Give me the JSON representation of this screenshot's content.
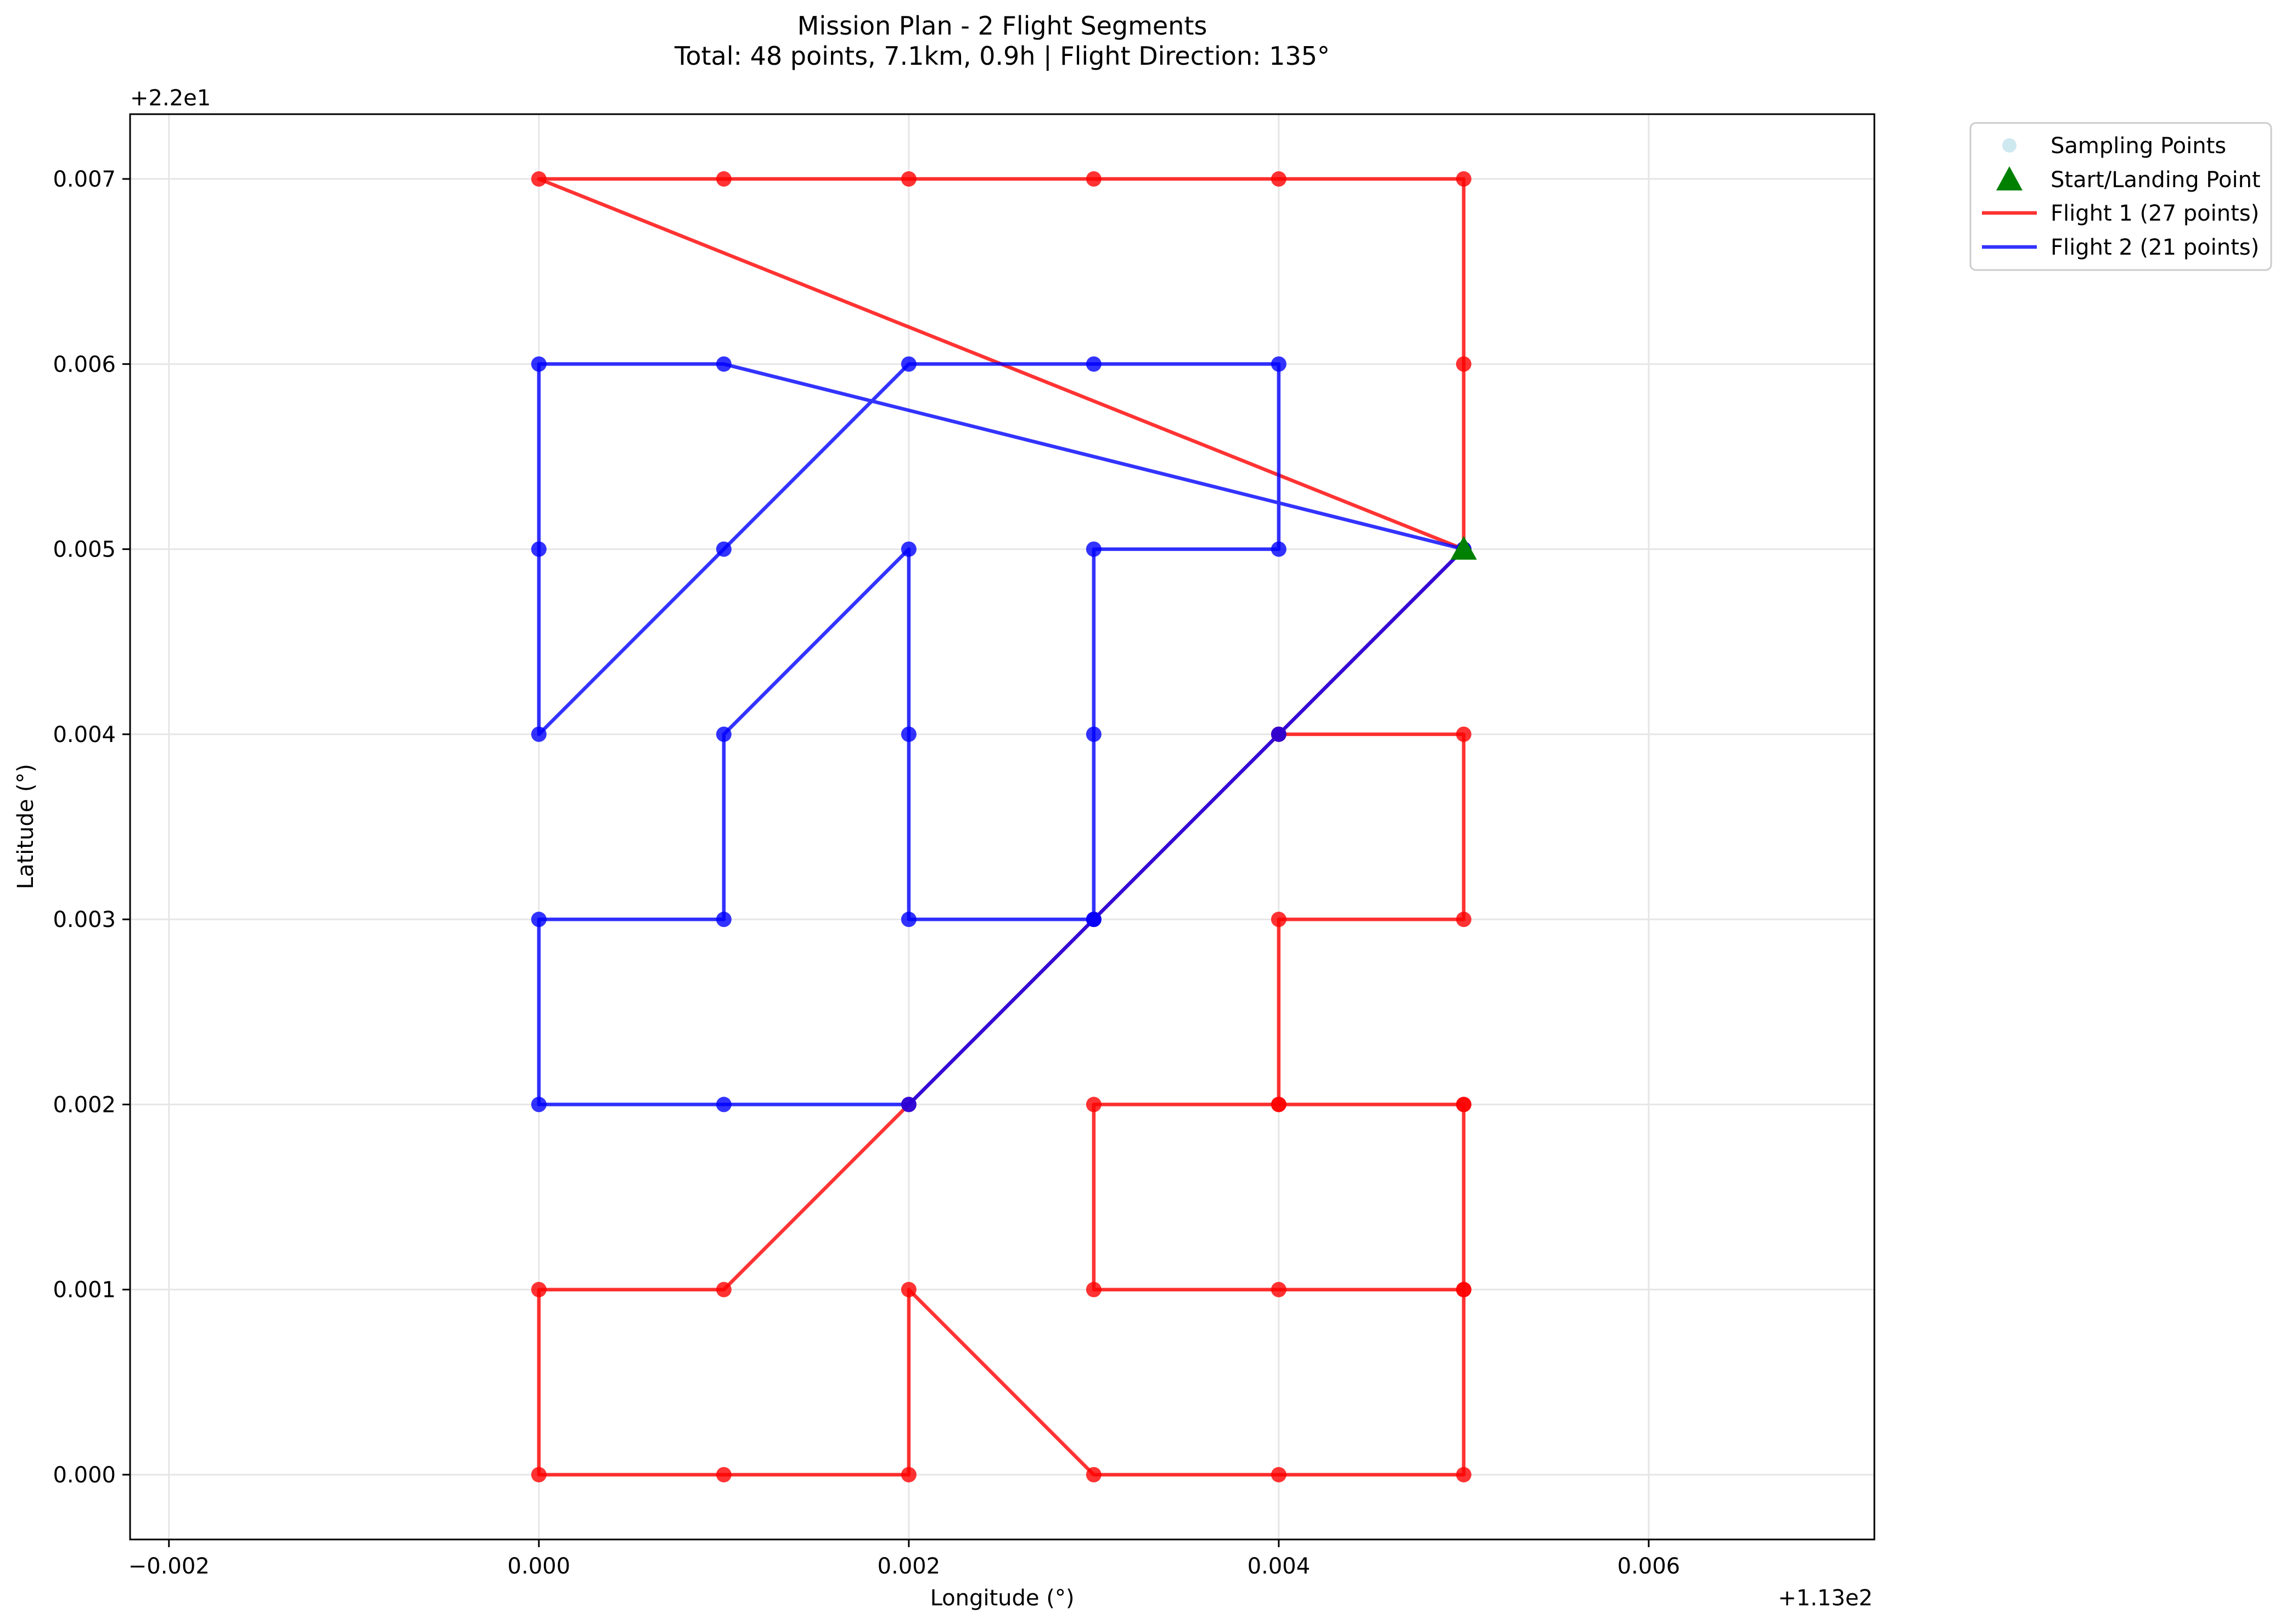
{
  "chart_data": {
    "type": "line",
    "title": "Mission Plan - 2 Flight Segments",
    "subtitle": "Total: 48 points, 7.1km, 0.9h | Flight Direction: 135°",
    "xlabel": "Longitude (°)",
    "ylabel": "Latitude (°)",
    "x_offset_label": "+1.13e2",
    "y_offset_label": "+2.2e1",
    "xlim": [
      -0.00221,
      0.00722
    ],
    "ylim": [
      -0.00035,
      0.00735
    ],
    "xticks": [
      -0.002,
      0.0,
      0.002,
      0.004,
      0.006
    ],
    "xtick_labels": [
      "−0.002",
      "0.000",
      "0.002",
      "0.004",
      "0.006"
    ],
    "yticks": [
      0.0,
      0.001,
      0.002,
      0.003,
      0.004,
      0.005,
      0.006,
      0.007
    ],
    "ytick_labels": [
      "0.000",
      "0.001",
      "0.002",
      "0.003",
      "0.004",
      "0.005",
      "0.006",
      "0.007"
    ],
    "grid": true,
    "legend_position": "outside top-right",
    "legend": [
      {
        "label": "Sampling Points",
        "marker": "dot",
        "color": "#add8e6"
      },
      {
        "label": "Start/Landing Point",
        "marker": "triangle",
        "color": "#008000"
      },
      {
        "label": "Flight 1 (27 points)",
        "marker": "line",
        "color": "#ff0000"
      },
      {
        "label": "Flight 2 (21 points)",
        "marker": "line",
        "color": "#0000ff"
      }
    ],
    "start_point": {
      "x": 0.005,
      "y": 0.005,
      "color": "#008000"
    },
    "series": [
      {
        "name": "Flight 1 (27 points)",
        "color": "#ff0000",
        "points": [
          [
            0.005,
            0.005
          ],
          [
            0.004,
            0.004
          ],
          [
            0.005,
            0.004
          ],
          [
            0.005,
            0.003
          ],
          [
            0.004,
            0.003
          ],
          [
            0.004,
            0.002
          ],
          [
            0.005,
            0.002
          ],
          [
            0.005,
            0.001
          ],
          [
            0.004,
            0.001
          ],
          [
            0.003,
            0.001
          ],
          [
            0.003,
            0.002
          ],
          [
            0.004,
            0.002
          ],
          [
            0.005,
            0.002
          ],
          [
            0.005,
            0.001
          ],
          [
            0.005,
            0.0
          ],
          [
            0.004,
            0.0
          ],
          [
            0.003,
            0.0
          ],
          [
            0.002,
            0.001
          ],
          [
            0.002,
            0.0
          ],
          [
            0.001,
            0.0
          ],
          [
            0.0,
            0.0
          ],
          [
            0.0,
            0.001
          ],
          [
            0.001,
            0.001
          ],
          [
            0.002,
            0.002
          ],
          [
            0.003,
            0.003
          ],
          [
            0.004,
            0.004
          ],
          [
            0.005,
            0.005
          ],
          [
            0.005,
            0.006
          ],
          [
            0.005,
            0.007
          ],
          [
            0.004,
            0.007
          ],
          [
            0.003,
            0.007
          ],
          [
            0.002,
            0.007
          ],
          [
            0.001,
            0.007
          ],
          [
            0.0,
            0.007
          ],
          [
            0.005,
            0.005
          ]
        ]
      },
      {
        "name": "Flight 2 (21 points)",
        "color": "#0000ff",
        "points": [
          [
            0.005,
            0.005
          ],
          [
            0.004,
            0.004
          ],
          [
            0.003,
            0.003
          ],
          [
            0.002,
            0.002
          ],
          [
            0.001,
            0.002
          ],
          [
            0.0,
            0.002
          ],
          [
            0.0,
            0.003
          ],
          [
            0.001,
            0.003
          ],
          [
            0.001,
            0.004
          ],
          [
            0.002,
            0.005
          ],
          [
            0.002,
            0.004
          ],
          [
            0.002,
            0.003
          ],
          [
            0.003,
            0.003
          ],
          [
            0.003,
            0.004
          ],
          [
            0.003,
            0.005
          ],
          [
            0.004,
            0.005
          ],
          [
            0.004,
            0.006
          ],
          [
            0.003,
            0.006
          ],
          [
            0.002,
            0.006
          ],
          [
            0.001,
            0.005
          ],
          [
            0.0,
            0.004
          ],
          [
            0.0,
            0.005
          ],
          [
            0.0,
            0.006
          ],
          [
            0.001,
            0.006
          ],
          [
            0.005,
            0.005
          ]
        ]
      }
    ]
  }
}
